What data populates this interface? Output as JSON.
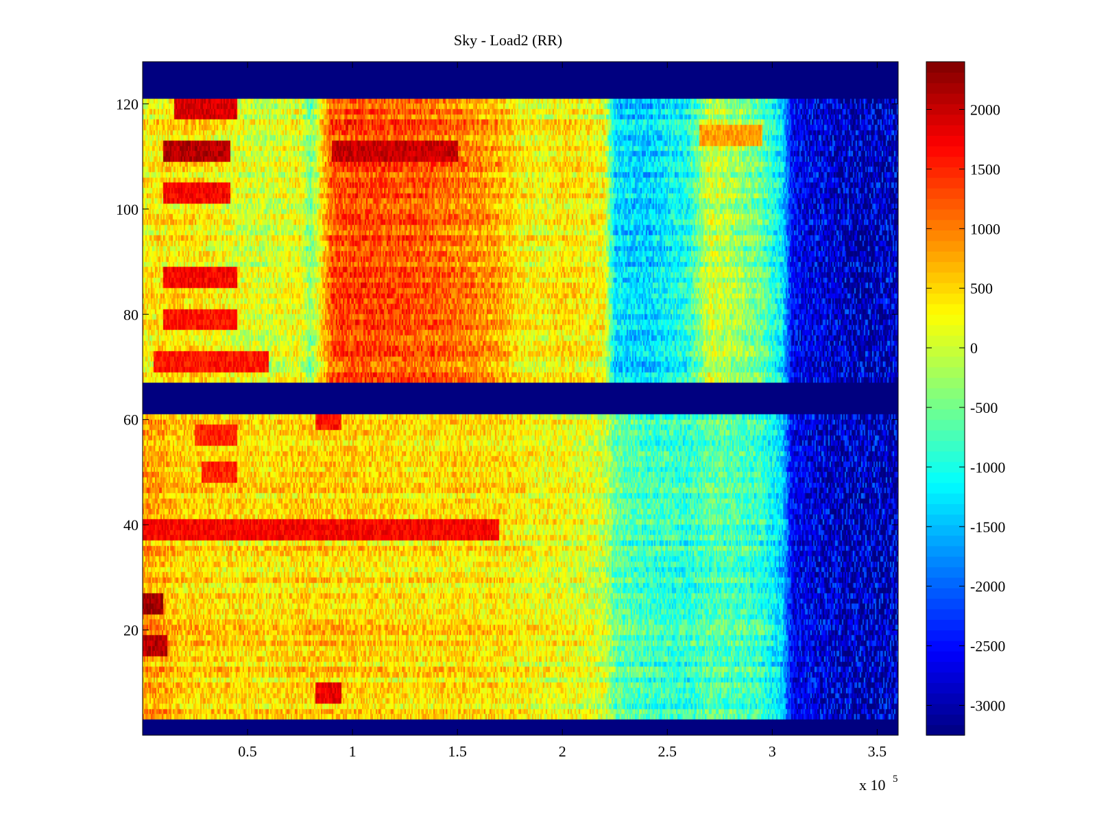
{
  "chart_data": {
    "type": "heatmap",
    "title": "Sky - Load2 (RR)",
    "xlabel": "",
    "ylabel": "",
    "x_multiplier_label": "x 10",
    "x_multiplier_exp": "5",
    "xlim": [
      0,
      3.6
    ],
    "ylim": [
      0,
      128
    ],
    "xticks": [
      0.5,
      1,
      1.5,
      2,
      2.5,
      3,
      3.5
    ],
    "xtick_labels": [
      "0.5",
      "1",
      "1.5",
      "2",
      "2.5",
      "3",
      "3.5"
    ],
    "yticks": [
      20,
      40,
      60,
      80,
      100,
      120
    ],
    "ytick_labels": [
      "20",
      "40",
      "60",
      "80",
      "100",
      "120"
    ],
    "colormap": "jet",
    "clim": [
      -3250,
      2400
    ],
    "colorbar_ticks": [
      2000,
      1500,
      1000,
      500,
      0,
      -500,
      -1000,
      -1500,
      -2000,
      -2500,
      -3000
    ],
    "colorbar_tick_labels": [
      "2000",
      "1500",
      "1000",
      "500",
      "0",
      "-500",
      "-1000",
      "-1500",
      "-2000",
      "-2500",
      "-3000"
    ],
    "masked_rows": [
      [
        0,
        3
      ],
      [
        61.5,
        67.5
      ],
      [
        121.5,
        128
      ]
    ],
    "column_profile": {
      "x": [
        0,
        0.1,
        0.2,
        0.3,
        0.45,
        0.6,
        0.75,
        0.8,
        0.9,
        1.0,
        1.15,
        1.3,
        1.5,
        1.6,
        1.7,
        1.8,
        1.9,
        2.0,
        2.1,
        2.2,
        2.25,
        2.4,
        2.6,
        2.7,
        2.8,
        2.95,
        3.05,
        3.1,
        3.2,
        3.3,
        3.35,
        3.6
      ],
      "upper_band_value": [
        300,
        350,
        400,
        350,
        100,
        0,
        200,
        -500,
        1200,
        1300,
        1250,
        1200,
        1000,
        900,
        700,
        300,
        200,
        400,
        300,
        200,
        -1300,
        -1400,
        -1000,
        0,
        -200,
        -600,
        -1300,
        -2700,
        -2900,
        -3000,
        -3200,
        -3200
      ],
      "lower_band_value": [
        800,
        700,
        500,
        500,
        450,
        400,
        500,
        500,
        500,
        500,
        450,
        400,
        450,
        400,
        400,
        300,
        200,
        200,
        100,
        0,
        -600,
        -800,
        -900,
        -700,
        -700,
        -900,
        -1400,
        -2700,
        -2900,
        -3100,
        -3200,
        -3200
      ]
    },
    "hot_rows_upper": [
      {
        "y": 119,
        "x0": 0.15,
        "x1": 0.45,
        "value": 1900
      },
      {
        "y": 111,
        "x0": 0.1,
        "x1": 0.42,
        "value": 2100
      },
      {
        "y": 103,
        "x0": 0.1,
        "x1": 0.42,
        "value": 1700
      },
      {
        "y": 87,
        "x0": 0.1,
        "x1": 0.45,
        "value": 1700
      },
      {
        "y": 79,
        "x0": 0.1,
        "x1": 0.45,
        "value": 1600
      },
      {
        "y": 71,
        "x0": 0.05,
        "x1": 0.6,
        "value": 1600
      },
      {
        "y": 111,
        "x0": 0.9,
        "x1": 1.5,
        "value": 2000
      },
      {
        "y": 114,
        "x0": 2.65,
        "x1": 2.95,
        "value": 800
      }
    ],
    "hot_rows_lower": [
      {
        "y": 39,
        "x0": 0,
        "x1": 1.7,
        "value": 1700
      },
      {
        "y": 25,
        "x0": 0,
        "x1": 0.1,
        "value": 2200
      },
      {
        "y": 17,
        "x0": 0,
        "x1": 0.12,
        "value": 2100
      },
      {
        "y": 57,
        "x0": 0.25,
        "x1": 0.45,
        "value": 1500
      },
      {
        "y": 50,
        "x0": 0.28,
        "x1": 0.45,
        "value": 1500
      },
      {
        "y": 8,
        "x0": 0.82,
        "x1": 0.95,
        "value": 1800
      },
      {
        "y": 60,
        "x0": 0.82,
        "x1": 0.95,
        "value": 1600
      }
    ]
  }
}
